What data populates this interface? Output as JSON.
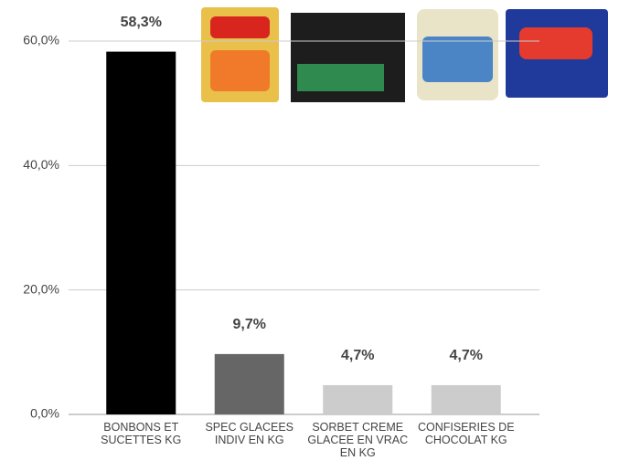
{
  "chart_data": {
    "type": "bar",
    "categories": [
      "BONBONS ET SUCETTES KG",
      "SPEC GLACEES INDIV EN KG",
      "SORBET CREME GLACEE EN VRAC EN KG",
      "CONFISERIES DE CHOCOLAT KG"
    ],
    "values": [
      58.3,
      9.7,
      4.7,
      4.7
    ],
    "value_labels": [
      "58,3%",
      "9,7%",
      "4,7%",
      "4,7%"
    ],
    "colors": [
      "#000000",
      "#666666",
      "#cccccc",
      "#cccccc"
    ],
    "value_label_colors": [
      "#333333",
      "#555555",
      "#cccccc",
      "#cccccc"
    ],
    "ylim": [
      0,
      60
    ],
    "yticks": [
      {
        "value": 0,
        "label": "0,0%"
      },
      {
        "value": 20,
        "label": "20,0%"
      },
      {
        "value": 40,
        "label": "40,0%"
      },
      {
        "value": 60,
        "label": "60,0%"
      }
    ],
    "grid": true
  }
}
